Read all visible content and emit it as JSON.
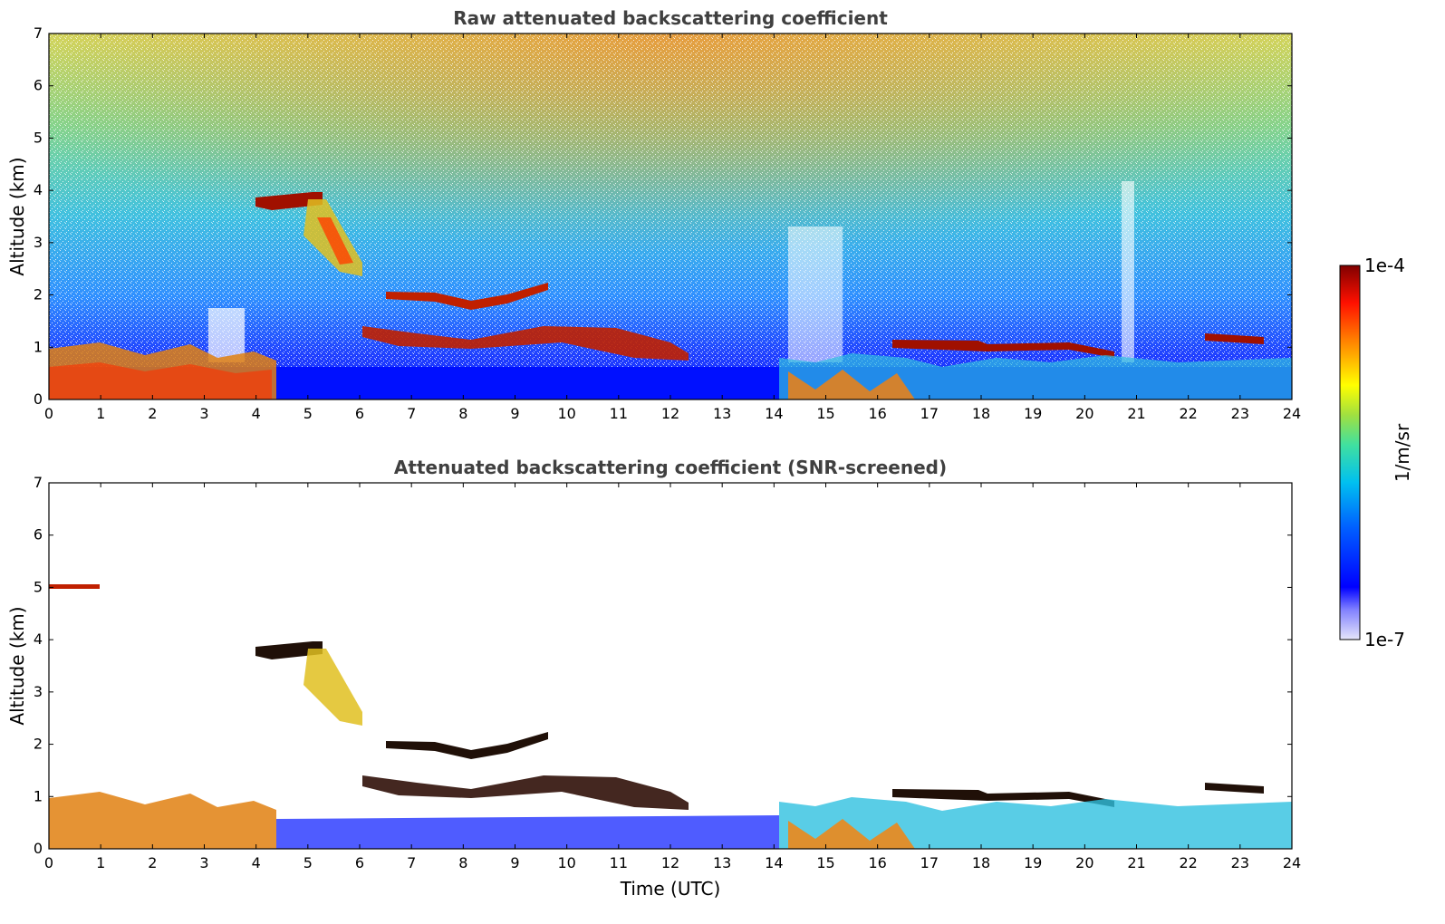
{
  "chart_data": [
    {
      "type": "heatmap",
      "title": "Raw attenuated backscattering coefficient",
      "xlabel": "",
      "ylabel": "Altitude (km)",
      "xlim": [
        0,
        24
      ],
      "ylim": [
        0,
        7
      ],
      "x_ticks": [
        "0",
        "1",
        "2",
        "3",
        "4",
        "5",
        "6",
        "7",
        "8",
        "9",
        "10",
        "11",
        "12",
        "13",
        "14",
        "15",
        "16",
        "17",
        "18",
        "19",
        "20",
        "21",
        "22",
        "23",
        "24"
      ],
      "y_ticks": [
        "0",
        "1",
        "2",
        "3",
        "4",
        "5",
        "6",
        "7"
      ],
      "features": [
        {
          "name": "elevated layer",
          "time_range": [
            4.0,
            6.0
          ],
          "altitude_km": [
            2.6,
            4.0
          ]
        },
        {
          "name": "layer",
          "time_range": [
            6.5,
            9.7
          ],
          "altitude_km": [
            1.8,
            2.2
          ]
        },
        {
          "name": "boundary layer clouds",
          "time_range": [
            6.0,
            24.0
          ],
          "altitude_km": [
            0.5,
            1.4
          ]
        },
        {
          "name": "aerosol",
          "time_range": [
            0.0,
            4.2
          ],
          "altitude_km": [
            0.0,
            1.0
          ]
        }
      ]
    },
    {
      "type": "heatmap",
      "title": "Attenuated backscattering coefficient (SNR-screened)",
      "xlabel": "Time (UTC)",
      "ylabel": "Altitude (km)",
      "xlim": [
        0,
        24
      ],
      "ylim": [
        0,
        7
      ],
      "x_ticks": [
        "0",
        "1",
        "2",
        "3",
        "4",
        "5",
        "6",
        "7",
        "8",
        "9",
        "10",
        "11",
        "12",
        "13",
        "14",
        "15",
        "16",
        "17",
        "18",
        "19",
        "20",
        "21",
        "22",
        "23",
        "24"
      ],
      "y_ticks": [
        "0",
        "1",
        "2",
        "3",
        "4",
        "5",
        "6",
        "7"
      ]
    }
  ],
  "colorbar": {
    "label": "1/m/sr",
    "max_label": "1e-4",
    "min_label": "1e-7",
    "scale": "log",
    "colors": [
      "#e6e6fa",
      "#0000ff",
      "#0080ff",
      "#00e0e0",
      "#60e060",
      "#ffff00",
      "#ff8000",
      "#ff0000",
      "#800000"
    ]
  }
}
